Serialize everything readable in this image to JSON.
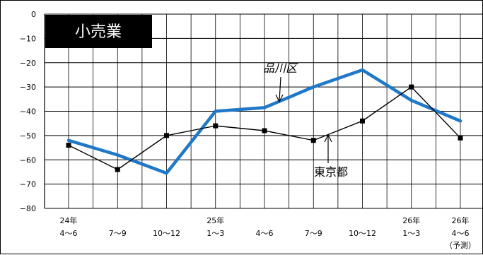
{
  "chart_data": {
    "type": "line",
    "title": "小売業",
    "xlabel": "",
    "ylabel": "",
    "ylim": [
      -80,
      0
    ],
    "yticks": [
      0,
      -10,
      -20,
      -30,
      -40,
      -50,
      -60,
      -70,
      -80
    ],
    "grid": true,
    "categories": [
      [
        "24年",
        "4〜6"
      ],
      [
        "",
        "7〜9"
      ],
      [
        "",
        "10〜12"
      ],
      [
        "25年",
        "1〜3"
      ],
      [
        "",
        "4〜6"
      ],
      [
        "",
        "7〜9"
      ],
      [
        "",
        "10〜12"
      ],
      [
        "26年",
        "1〜3"
      ],
      [
        "26年",
        "4〜6",
        "（予測）"
      ]
    ],
    "series": [
      {
        "name": "品川区",
        "color": "#1f78c8",
        "values": [
          -52,
          -58,
          -65.5,
          -40,
          -38.5,
          -30,
          -23,
          -35.5,
          -44
        ]
      },
      {
        "name": "東京都",
        "color": "#000000",
        "values": [
          -54,
          -64,
          -50,
          -46,
          -48,
          -52,
          -44,
          -30,
          -51
        ]
      }
    ],
    "annotations": [
      {
        "text": "品川区",
        "series": 0,
        "style": "italic"
      },
      {
        "text": "東京都",
        "series": 1,
        "style": "normal"
      }
    ]
  }
}
